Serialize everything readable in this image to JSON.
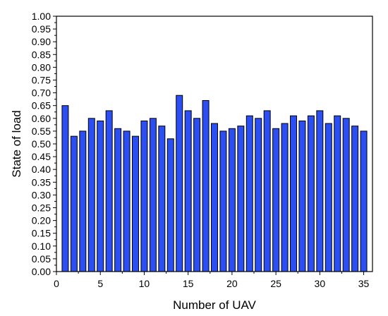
{
  "chart_data": {
    "type": "bar",
    "title": "",
    "xlabel": "Number of UAV",
    "ylabel": "State of load",
    "x": [
      1,
      2,
      3,
      4,
      5,
      6,
      7,
      8,
      9,
      10,
      11,
      12,
      13,
      14,
      15,
      16,
      17,
      18,
      19,
      20,
      21,
      22,
      23,
      24,
      25,
      26,
      27,
      28,
      29,
      30,
      31,
      32,
      33,
      34,
      35
    ],
    "values": [
      0.65,
      0.53,
      0.55,
      0.6,
      0.59,
      0.63,
      0.56,
      0.55,
      0.53,
      0.59,
      0.6,
      0.57,
      0.52,
      0.69,
      0.63,
      0.6,
      0.67,
      0.58,
      0.55,
      0.56,
      0.57,
      0.61,
      0.6,
      0.63,
      0.56,
      0.58,
      0.61,
      0.59,
      0.61,
      0.63,
      0.58,
      0.61,
      0.6,
      0.57,
      0.55
    ],
    "xlim": [
      0,
      36
    ],
    "ylim": [
      0,
      1.0
    ],
    "x_ticks": [
      "0",
      "5",
      "10",
      "15",
      "20",
      "25",
      "30",
      "35"
    ],
    "y_ticks": [
      "0.00",
      "0.05",
      "0.10",
      "0.15",
      "0.20",
      "0.25",
      "0.30",
      "0.35",
      "0.40",
      "0.45",
      "0.50",
      "0.55",
      "0.60",
      "0.65",
      "0.70",
      "0.75",
      "0.80",
      "0.85",
      "0.90",
      "0.95",
      "1.00"
    ],
    "bar_color": "#2b4ff2",
    "grid": false
  }
}
